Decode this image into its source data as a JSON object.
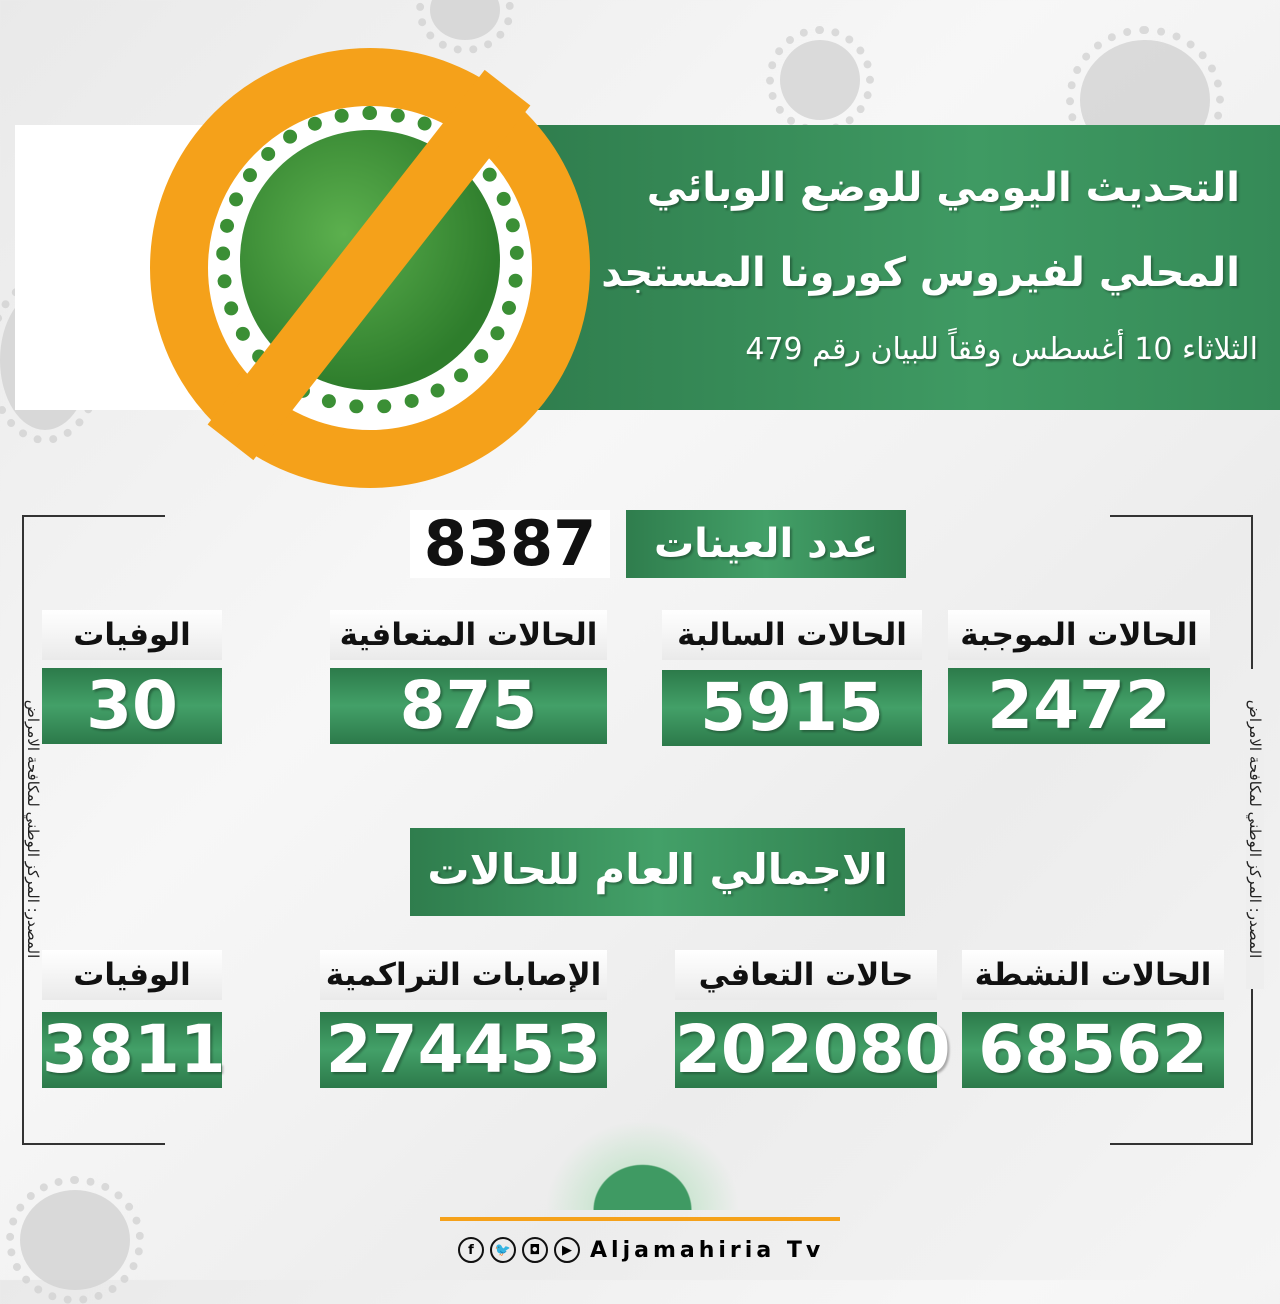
{
  "header": {
    "title_line1": "التحديث اليومي للوضع الوبائي",
    "title_line2": "المحلي لفيروس كورونا المستجد",
    "subtitle": "الثلاثاء 10 أغسطس وفقاً للبيان رقم 479"
  },
  "samples": {
    "label": "عدد العينات",
    "value": "8387"
  },
  "daily": [
    {
      "label": "الحالات الموجبة",
      "value": "2472"
    },
    {
      "label": "الحالات السالبة",
      "value": "5915"
    },
    {
      "label": "الحالات المتعافية",
      "value": "875"
    },
    {
      "label": "الوفيات",
      "value": "30"
    }
  ],
  "totals_title": "الاجمالي العام للحالات",
  "totals": [
    {
      "label": "الحالات النشطة",
      "value": "68562"
    },
    {
      "label": "حالات التعافي",
      "value": "202080"
    },
    {
      "label": "الإصابات التراكمية",
      "value": "274453"
    },
    {
      "label": "الوفيات",
      "value": "3811"
    }
  ],
  "source": "المصدر: المركز الوطني لمكافحة الامراض",
  "footer": {
    "brand": "Aljamahiria Tv",
    "social": [
      "f",
      "t",
      "ig",
      "yt"
    ]
  },
  "colors": {
    "green": "#3f9a63",
    "orange": "#f5a11a"
  }
}
